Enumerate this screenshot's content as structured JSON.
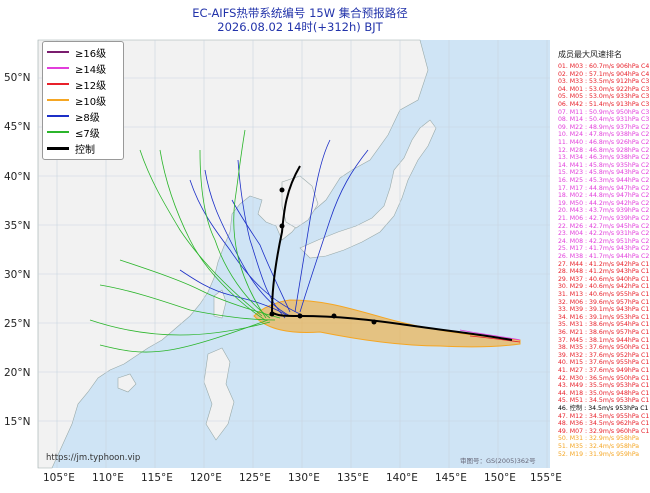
{
  "title": "EC-AIFS热带系统编号 15W 集合预报路径",
  "subtitle": "2026.08.02 14时(+312h) BJT",
  "lat_labels": [
    "50°N",
    "45°N",
    "40°N",
    "35°N",
    "30°N",
    "25°N",
    "20°N",
    "15°N"
  ],
  "lon_labels": [
    "105°E",
    "110°E",
    "115°E",
    "120°E",
    "125°E",
    "130°E",
    "135°E",
    "140°E",
    "145°E",
    "150°E",
    "155°E"
  ],
  "legend": [
    {
      "label": "≥16级",
      "color": "#7a1d6e"
    },
    {
      "label": "≥14级",
      "color": "#e23ddb"
    },
    {
      "label": "≥12级",
      "color": "#e8202a"
    },
    {
      "label": "≥10级",
      "color": "#f5a623"
    },
    {
      "label": "≥8级",
      "color": "#1c2fc7"
    },
    {
      "label": "≤7级",
      "color": "#2bb52b"
    },
    {
      "label": "控制",
      "color": "#000000"
    }
  ],
  "ranking_title": "成员最大风速排名",
  "ranking": [
    {
      "text": "01. M03 : 60.7m/s 906hPa C4",
      "color": "#e8202a"
    },
    {
      "text": "02. M20 : 57.1m/s 904hPa C4",
      "color": "#e8202a"
    },
    {
      "text": "03. M33 : 53.5m/s 912hPa C3",
      "color": "#e8202a"
    },
    {
      "text": "04. M01 : 53.0m/s 922hPa C3",
      "color": "#e8202a"
    },
    {
      "text": "05. M05 : 53.0m/s 933hPa C3",
      "color": "#e8202a"
    },
    {
      "text": "06. M42 : 51.4m/s 913hPa C3",
      "color": "#e8202a"
    },
    {
      "text": "07. M11 : 50.9m/s 950hPa C3",
      "color": "#e23ddb"
    },
    {
      "text": "08. M14 : 50.4m/s 931hPa C3",
      "color": "#e23ddb"
    },
    {
      "text": "09. M22 : 48.9m/s 937hPa C2",
      "color": "#e23ddb"
    },
    {
      "text": "10. M24 : 47.8m/s 938hPa C2",
      "color": "#e23ddb"
    },
    {
      "text": "11. M40 : 46.8m/s 926hPa C2",
      "color": "#e23ddb"
    },
    {
      "text": "12. M28 : 46.8m/s 928hPa C2",
      "color": "#e23ddb"
    },
    {
      "text": "13. M34 : 46.3m/s 938hPa C2",
      "color": "#e23ddb"
    },
    {
      "text": "14. M41 : 45.8m/s 935hPa C2",
      "color": "#e23ddb"
    },
    {
      "text": "15. M23 : 45.8m/s 943hPa C2",
      "color": "#e23ddb"
    },
    {
      "text": "16. M25 : 45.3m/s 944hPa C2",
      "color": "#e23ddb"
    },
    {
      "text": "17. M17 : 44.8m/s 947hPa C2",
      "color": "#e23ddb"
    },
    {
      "text": "18. M02 : 44.8m/s 947hPa C2",
      "color": "#e23ddb"
    },
    {
      "text": "19. M50 : 44.2m/s 942hPa C2",
      "color": "#e23ddb"
    },
    {
      "text": "20. M43 : 43.7m/s 939hPa C2",
      "color": "#e23ddb"
    },
    {
      "text": "21. M06 : 42.7m/s 939hPa C2",
      "color": "#e23ddb"
    },
    {
      "text": "22. M26 : 42.7m/s 945hPa C2",
      "color": "#e23ddb"
    },
    {
      "text": "23. M04 : 42.2m/s 931hPa C2",
      "color": "#e23ddb"
    },
    {
      "text": "24. M08 : 42.2m/s 951hPa C2",
      "color": "#e23ddb"
    },
    {
      "text": "25. M17 : 41.7m/s 943hPa C2",
      "color": "#e23ddb"
    },
    {
      "text": "26. M38 : 41.7m/s 944hPa C2",
      "color": "#e23ddb"
    },
    {
      "text": "27. M44 : 41.2m/s 942hPa C1",
      "color": "#e8202a"
    },
    {
      "text": "28. M48 : 41.2m/s 943hPa C1",
      "color": "#e8202a"
    },
    {
      "text": "29. M37 : 40.6m/s 940hPa C1",
      "color": "#e8202a"
    },
    {
      "text": "30. M29 : 40.6m/s 942hPa C1",
      "color": "#e8202a"
    },
    {
      "text": "31. M13 : 40.6m/s 955hPa C1",
      "color": "#e8202a"
    },
    {
      "text": "32. M06 : 39.6m/s 957hPa C1",
      "color": "#e8202a"
    },
    {
      "text": "33. M39 : 39.1m/s 943hPa C1",
      "color": "#e8202a"
    },
    {
      "text": "34. M16 : 39.1m/s 953hPa C1",
      "color": "#e8202a"
    },
    {
      "text": "35. M31 : 38.6m/s 954hPa C1",
      "color": "#e8202a"
    },
    {
      "text": "36. M21 : 38.6m/s 957hPa C1",
      "color": "#e8202a"
    },
    {
      "text": "37. M45 : 38.1m/s 944hPa C1",
      "color": "#e8202a"
    },
    {
      "text": "38. M35 : 37.6m/s 950hPa C1",
      "color": "#e8202a"
    },
    {
      "text": "39. M32 : 37.6m/s 952hPa C1",
      "color": "#e8202a"
    },
    {
      "text": "40. M15 : 37.6m/s 955hPa C1",
      "color": "#e8202a"
    },
    {
      "text": "41. M27 : 37.6m/s 949hPa C1",
      "color": "#e8202a"
    },
    {
      "text": "42. M30 : 36.5m/s 950hPa C1",
      "color": "#e8202a"
    },
    {
      "text": "43. M49 : 35.5m/s 953hPa C1",
      "color": "#e8202a"
    },
    {
      "text": "44. M18 : 35.0m/s 948hPa C1",
      "color": "#e8202a"
    },
    {
      "text": "45. M51 : 34.5m/s 953hPa C1",
      "color": "#e8202a"
    },
    {
      "text": "46. 控制 : 34.5m/s 953hPa C1",
      "color": "#000000"
    },
    {
      "text": "47. M12 : 34.5m/s 955hPa C1",
      "color": "#e8202a"
    },
    {
      "text": "48. M36 : 34.5m/s 962hPa C1",
      "color": "#e8202a"
    },
    {
      "text": "49. M07 : 32.9m/s 960hPa C1",
      "color": "#e8202a"
    },
    {
      "text": "50. M31 : 32.9m/s 958hPa",
      "color": "#f5a623"
    },
    {
      "text": "51. M35 : 32.4m/s 958hPa",
      "color": "#f5a623"
    },
    {
      "text": "52. M19 : 31.9m/s 959hPa",
      "color": "#f5a623"
    }
  ],
  "url": "https://jm.typhoon.vip",
  "map_number": "审图号：GS(2005)362号",
  "colors": {
    "ocean": "#cfe4f5",
    "land": "#f2f2f2",
    "grid": "#c8d4e0",
    "title": "#2233aa"
  }
}
